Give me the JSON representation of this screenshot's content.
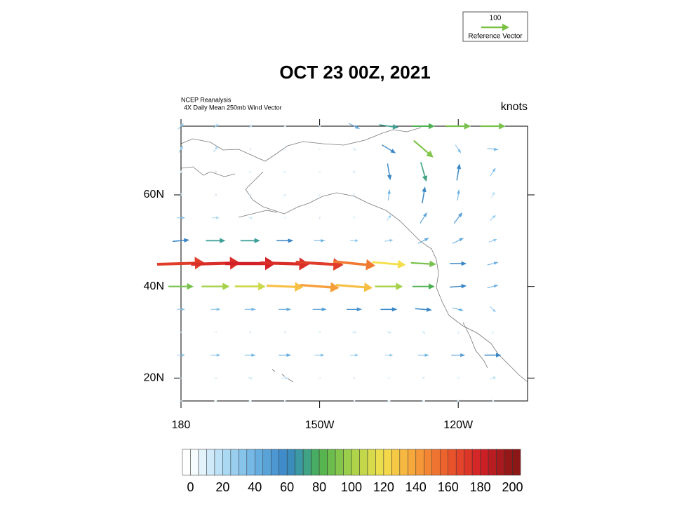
{
  "chart_data": {
    "type": "vector",
    "title": "OCT 23 00Z, 2021",
    "source": "NCEP Reanalysis",
    "subtitle": "4X Daily Mean 250mb  Wind Vector",
    "units": "knots",
    "reference_value": 100,
    "reference_label": "Reference Vector",
    "reference_color": "#7ac143",
    "xlim": [
      180,
      255
    ],
    "ylim": [
      15,
      75
    ],
    "xticks": [
      {
        "value": 180,
        "label": "180"
      },
      {
        "value": 210,
        "label": "150W"
      },
      {
        "value": 240,
        "label": "120W"
      }
    ],
    "yticks": [
      {
        "value": 20,
        "label": "20N"
      },
      {
        "value": 40,
        "label": "40N"
      },
      {
        "value": 60,
        "label": "60N"
      }
    ],
    "lons": [
      180,
      187.5,
      195,
      202.5,
      210,
      217.5,
      225,
      232.5,
      240,
      247.5
    ],
    "lats": [
      75,
      70,
      65,
      60,
      55,
      50,
      45,
      40,
      35,
      30,
      25,
      20,
      15
    ],
    "u": [
      [
        20,
        20,
        15,
        10,
        5,
        40,
        70,
        80,
        90,
        90
      ],
      [
        15,
        15,
        -5,
        -10,
        -10,
        10,
        50,
        70,
        20,
        40
      ],
      [
        5,
        5,
        -10,
        -10,
        -8,
        -5,
        10,
        20,
        10,
        20
      ],
      [
        10,
        5,
        -5,
        -8,
        -5,
        -5,
        5,
        10,
        5,
        10
      ],
      [
        30,
        25,
        15,
        8,
        5,
        5,
        15,
        25,
        30,
        20
      ],
      [
        60,
        70,
        70,
        60,
        40,
        30,
        30,
        40,
        40,
        30
      ],
      [
        170,
        175,
        180,
        175,
        170,
        150,
        120,
        90,
        60,
        40
      ],
      [
        90,
        100,
        110,
        130,
        140,
        130,
        100,
        80,
        60,
        40
      ],
      [
        30,
        35,
        40,
        45,
        50,
        55,
        60,
        60,
        40,
        20
      ],
      [
        10,
        10,
        5,
        5,
        10,
        15,
        15,
        10,
        5,
        -5
      ],
      [
        30,
        35,
        40,
        45,
        35,
        30,
        30,
        40,
        50,
        60
      ],
      [
        10,
        10,
        15,
        20,
        10,
        -5,
        -10,
        -5,
        10,
        20
      ],
      [
        10,
        10,
        10,
        5,
        0,
        -5,
        -10,
        -10,
        -5,
        5
      ]
    ],
    "v": [
      [
        20,
        15,
        10,
        5,
        -5,
        -20,
        -10,
        0,
        0,
        0
      ],
      [
        25,
        20,
        0,
        0,
        0,
        -10,
        -30,
        -60,
        -30,
        -5
      ],
      [
        10,
        5,
        0,
        -5,
        -5,
        5,
        -60,
        -70,
        60,
        30
      ],
      [
        10,
        5,
        -5,
        -10,
        -10,
        10,
        40,
        60,
        40,
        20
      ],
      [
        0,
        0,
        -5,
        -5,
        0,
        10,
        20,
        40,
        40,
        20
      ],
      [
        5,
        0,
        0,
        0,
        0,
        0,
        5,
        20,
        20,
        10
      ],
      [
        5,
        5,
        0,
        -5,
        -10,
        -15,
        -10,
        -5,
        0,
        10
      ],
      [
        0,
        0,
        0,
        -5,
        -10,
        -10,
        0,
        0,
        5,
        10
      ],
      [
        0,
        0,
        0,
        0,
        0,
        0,
        0,
        -5,
        -10,
        -20
      ],
      [
        0,
        0,
        0,
        0,
        5,
        0,
        -5,
        -10,
        -10,
        -10
      ],
      [
        0,
        0,
        0,
        0,
        0,
        0,
        0,
        0,
        0,
        0
      ],
      [
        0,
        -5,
        -5,
        0,
        0,
        0,
        0,
        5,
        5,
        5
      ],
      [
        0,
        0,
        0,
        0,
        0,
        0,
        0,
        0,
        5,
        5
      ]
    ],
    "colorbar_lim": [
      -5,
      205
    ],
    "colorbar_ticks": [
      0,
      20,
      40,
      60,
      80,
      100,
      120,
      140,
      160,
      180,
      200
    ],
    "color_stops": [
      [
        0,
        "#ffffff"
      ],
      [
        20,
        "#b3def5"
      ],
      [
        40,
        "#6db4e4"
      ],
      [
        60,
        "#3a86c7"
      ],
      [
        70,
        "#3c9e96"
      ],
      [
        80,
        "#4cb050"
      ],
      [
        100,
        "#a5d24a"
      ],
      [
        120,
        "#f5e04c"
      ],
      [
        140,
        "#f6a03a"
      ],
      [
        160,
        "#ec5a2b"
      ],
      [
        180,
        "#d32027"
      ],
      [
        200,
        "#8c1717"
      ]
    ]
  }
}
